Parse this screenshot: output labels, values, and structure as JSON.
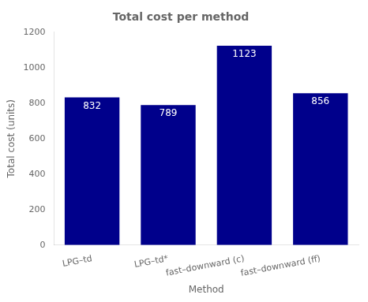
{
  "chart_data": {
    "type": "bar",
    "title": "Total cost per method",
    "xlabel": "Method",
    "ylabel": "Total cost (units)",
    "categories": [
      "LPG–td",
      "LPG–td*",
      "fast–downward (c)",
      "fast–downward (ff)"
    ],
    "values": [
      832,
      789,
      1123,
      856
    ],
    "color": "#00008B",
    "ylim": [
      0,
      1200
    ],
    "yticks": [
      0,
      200,
      400,
      600,
      800,
      1000,
      1200
    ],
    "grid": false,
    "data_labels": true
  }
}
